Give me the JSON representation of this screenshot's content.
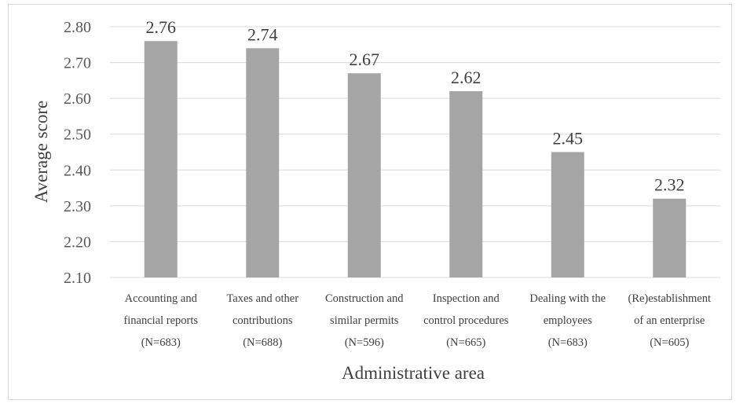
{
  "chart_data": {
    "type": "bar",
    "categories": [
      [
        "Accounting and",
        "financial reports",
        "(N=683)"
      ],
      [
        "Taxes and other",
        "contributions",
        "(N=688)"
      ],
      [
        "Construction and",
        "similar permits",
        "(N=596)"
      ],
      [
        "Inspection and",
        "control procedures",
        "(N=665)"
      ],
      [
        "Dealing with the",
        "employees",
        "(N=683)"
      ],
      [
        "(Re)establishment",
        "of an enterprise",
        "(N=605)"
      ]
    ],
    "values": [
      2.76,
      2.74,
      2.67,
      2.62,
      2.45,
      2.32
    ],
    "value_labels": [
      "2.76",
      "2.74",
      "2.67",
      "2.62",
      "2.45",
      "2.32"
    ],
    "ylim": [
      2.1,
      2.8
    ],
    "yticks": [
      "2.10",
      "2.20",
      "2.30",
      "2.40",
      "2.50",
      "2.60",
      "2.70",
      "2.80"
    ],
    "xlabel": "Administrative area",
    "ylabel": "Average score",
    "grid": true,
    "colors": {
      "bar": "#a5a5a5",
      "grid": "#d9d9d9"
    }
  }
}
